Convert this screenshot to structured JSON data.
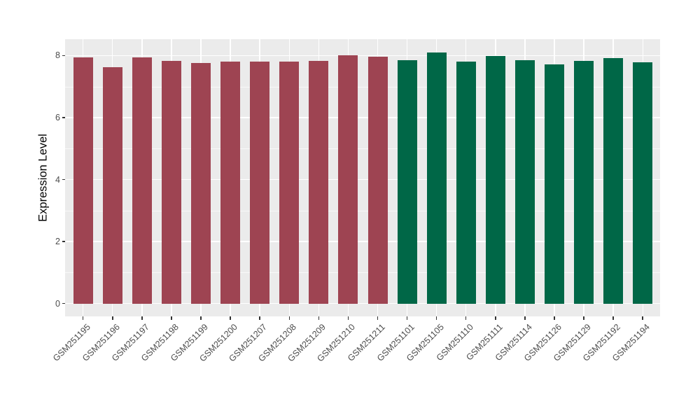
{
  "chart_data": {
    "type": "bar",
    "title": "",
    "xlabel": "",
    "ylabel": "Expression Level",
    "ylim": [
      0,
      8.5
    ],
    "yticks": [
      0,
      2,
      4,
      6,
      8
    ],
    "yticks_minor": [
      1,
      3,
      5,
      7
    ],
    "grid": true,
    "legend_position": "none",
    "panel_bg": "#EBEBEB",
    "grid_color": "#FFFFFF",
    "categories": [
      "GSM251195",
      "GSM251196",
      "GSM251197",
      "GSM251198",
      "GSM251199",
      "GSM251200",
      "GSM251207",
      "GSM251208",
      "GSM251209",
      "GSM251210",
      "GSM251211",
      "GSM251101",
      "GSM251105",
      "GSM251110",
      "GSM251111",
      "GSM251114",
      "GSM251126",
      "GSM251129",
      "GSM251192",
      "GSM251194"
    ],
    "values": [
      7.95,
      7.62,
      7.95,
      7.83,
      7.76,
      7.8,
      7.8,
      7.8,
      7.82,
      8.01,
      7.96,
      7.86,
      8.1,
      7.81,
      7.98,
      7.84,
      7.71,
      7.83,
      7.91,
      7.77
    ],
    "bar_colors": [
      "#9E4452",
      "#9E4452",
      "#9E4452",
      "#9E4452",
      "#9E4452",
      "#9E4452",
      "#9E4452",
      "#9E4452",
      "#9E4452",
      "#9E4452",
      "#9E4452",
      "#006747",
      "#006747",
      "#006747",
      "#006747",
      "#006747",
      "#006747",
      "#006747",
      "#006747",
      "#006747"
    ],
    "group_colors": {
      "group_1": "#9E4452",
      "group_2": "#006747"
    }
  }
}
